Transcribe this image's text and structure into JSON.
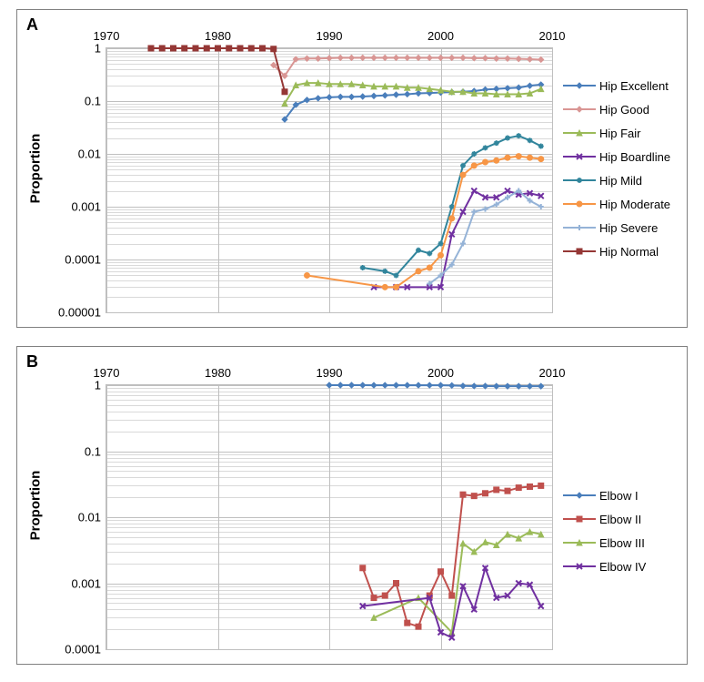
{
  "panelA": {
    "label": "A",
    "ylabel": "Proportion",
    "xlim": [
      1970,
      2010
    ],
    "xticks": [
      1970,
      1980,
      1990,
      2000,
      2010
    ],
    "ylim_log10": [
      -5,
      0
    ],
    "ytick_labels": [
      "1",
      "0.1",
      "0.01",
      "0.001",
      "0.0001",
      "0.00001"
    ],
    "axis_label_fontsize": 15,
    "tick_fontsize": 13,
    "grid_major_color": "#bfbfbf",
    "grid_minor_color": "#d9d9d9",
    "background_color": "#ffffff",
    "line_width": 2,
    "marker_size": 6,
    "series": [
      {
        "name": "Hip Excellent",
        "color": "#4a7ebb",
        "marker": "diamond",
        "data": [
          [
            1986,
            0.045
          ],
          [
            1987,
            0.085
          ],
          [
            1988,
            0.105
          ],
          [
            1989,
            0.113
          ],
          [
            1990,
            0.118
          ],
          [
            1991,
            0.12
          ],
          [
            1992,
            0.12
          ],
          [
            1993,
            0.122
          ],
          [
            1994,
            0.125
          ],
          [
            1995,
            0.128
          ],
          [
            1996,
            0.132
          ],
          [
            1997,
            0.135
          ],
          [
            1998,
            0.14
          ],
          [
            1999,
            0.142
          ],
          [
            2000,
            0.145
          ],
          [
            2001,
            0.148
          ],
          [
            2002,
            0.15
          ],
          [
            2003,
            0.155
          ],
          [
            2004,
            0.165
          ],
          [
            2005,
            0.17
          ],
          [
            2006,
            0.175
          ],
          [
            2007,
            0.18
          ],
          [
            2008,
            0.195
          ],
          [
            2009,
            0.205
          ]
        ]
      },
      {
        "name": "Hip Good",
        "color": "#d99694",
        "marker": "diamond",
        "data": [
          [
            1985,
            0.48
          ],
          [
            1986,
            0.3
          ],
          [
            1987,
            0.62
          ],
          [
            1988,
            0.64
          ],
          [
            1989,
            0.64
          ],
          [
            1990,
            0.65
          ],
          [
            1991,
            0.66
          ],
          [
            1992,
            0.66
          ],
          [
            1993,
            0.66
          ],
          [
            1994,
            0.66
          ],
          [
            1995,
            0.66
          ],
          [
            1996,
            0.66
          ],
          [
            1997,
            0.66
          ],
          [
            1998,
            0.66
          ],
          [
            1999,
            0.66
          ],
          [
            2000,
            0.66
          ],
          [
            2001,
            0.66
          ],
          [
            2002,
            0.66
          ],
          [
            2003,
            0.65
          ],
          [
            2004,
            0.65
          ],
          [
            2005,
            0.64
          ],
          [
            2006,
            0.64
          ],
          [
            2007,
            0.63
          ],
          [
            2008,
            0.62
          ],
          [
            2009,
            0.61
          ]
        ]
      },
      {
        "name": "Hip Fair",
        "color": "#9bbb59",
        "marker": "triangle",
        "data": [
          [
            1986,
            0.09
          ],
          [
            1987,
            0.2
          ],
          [
            1988,
            0.22
          ],
          [
            1989,
            0.22
          ],
          [
            1990,
            0.21
          ],
          [
            1991,
            0.21
          ],
          [
            1992,
            0.21
          ],
          [
            1993,
            0.2
          ],
          [
            1994,
            0.19
          ],
          [
            1995,
            0.19
          ],
          [
            1996,
            0.19
          ],
          [
            1997,
            0.18
          ],
          [
            1998,
            0.18
          ],
          [
            1999,
            0.17
          ],
          [
            2000,
            0.16
          ],
          [
            2001,
            0.15
          ],
          [
            2002,
            0.15
          ],
          [
            2003,
            0.14
          ],
          [
            2004,
            0.14
          ],
          [
            2005,
            0.135
          ],
          [
            2006,
            0.135
          ],
          [
            2007,
            0.135
          ],
          [
            2008,
            0.14
          ],
          [
            2009,
            0.17
          ]
        ]
      },
      {
        "name": "Hip Boardline",
        "color": "#7030a0",
        "marker": "x",
        "data": [
          [
            1994,
            3e-05
          ],
          [
            1996,
            3e-05
          ],
          [
            1997,
            3e-05
          ],
          [
            1999,
            3e-05
          ],
          [
            2000,
            3e-05
          ],
          [
            2001,
            0.0003
          ],
          [
            2002,
            0.0008
          ],
          [
            2003,
            0.002
          ],
          [
            2004,
            0.0015
          ],
          [
            2005,
            0.0015
          ],
          [
            2006,
            0.002
          ],
          [
            2007,
            0.0017
          ],
          [
            2008,
            0.0018
          ],
          [
            2009,
            0.0016
          ]
        ]
      },
      {
        "name": "Hip Mild",
        "color": "#31859c",
        "marker": "asterisk",
        "data": [
          [
            1993,
            7e-05
          ],
          [
            1995,
            6e-05
          ],
          [
            1996,
            5e-05
          ],
          [
            1998,
            0.00015
          ],
          [
            1999,
            0.00013
          ],
          [
            2000,
            0.0002
          ],
          [
            2001,
            0.001
          ],
          [
            2002,
            0.006
          ],
          [
            2003,
            0.01
          ],
          [
            2004,
            0.013
          ],
          [
            2005,
            0.016
          ],
          [
            2006,
            0.02
          ],
          [
            2007,
            0.022
          ],
          [
            2008,
            0.018
          ],
          [
            2009,
            0.014
          ]
        ]
      },
      {
        "name": "Hip Moderate",
        "color": "#f79646",
        "marker": "circle",
        "data": [
          [
            1988,
            5e-05
          ],
          [
            1995,
            3e-05
          ],
          [
            1996,
            3e-05
          ],
          [
            1998,
            6e-05
          ],
          [
            1999,
            7e-05
          ],
          [
            2000,
            0.00012
          ],
          [
            2001,
            0.0006
          ],
          [
            2002,
            0.004
          ],
          [
            2003,
            0.006
          ],
          [
            2004,
            0.007
          ],
          [
            2005,
            0.0075
          ],
          [
            2006,
            0.0085
          ],
          [
            2007,
            0.009
          ],
          [
            2008,
            0.0085
          ],
          [
            2009,
            0.008
          ]
        ]
      },
      {
        "name": "Hip Severe",
        "color": "#95b3d7",
        "marker": "plus",
        "data": [
          [
            1999,
            3.5e-05
          ],
          [
            2000,
            5e-05
          ],
          [
            2001,
            8e-05
          ],
          [
            2002,
            0.0002
          ],
          [
            2003,
            0.0008
          ],
          [
            2004,
            0.0009
          ],
          [
            2005,
            0.0011
          ],
          [
            2006,
            0.0015
          ],
          [
            2007,
            0.002
          ],
          [
            2008,
            0.0013
          ],
          [
            2009,
            0.001
          ]
        ]
      },
      {
        "name": "Hip Normal",
        "color": "#953735",
        "marker": "square",
        "data": [
          [
            1974,
            1.0
          ],
          [
            1975,
            1.0
          ],
          [
            1976,
            1.0
          ],
          [
            1977,
            1.0
          ],
          [
            1978,
            1.0
          ],
          [
            1979,
            1.0
          ],
          [
            1980,
            1.0
          ],
          [
            1981,
            1.0
          ],
          [
            1982,
            1.0
          ],
          [
            1983,
            1.0
          ],
          [
            1984,
            1.0
          ],
          [
            1985,
            0.97
          ],
          [
            1986,
            0.15
          ]
        ]
      }
    ]
  },
  "panelB": {
    "label": "B",
    "ylabel": "Proportion",
    "xlim": [
      1970,
      2010
    ],
    "xticks": [
      1970,
      1980,
      1990,
      2000,
      2010
    ],
    "ylim_log10": [
      -4,
      0
    ],
    "ytick_labels": [
      "1",
      "0.1",
      "0.01",
      "0.001",
      "0.0001"
    ],
    "axis_label_fontsize": 15,
    "tick_fontsize": 13,
    "grid_major_color": "#bfbfbf",
    "grid_minor_color": "#d9d9d9",
    "background_color": "#ffffff",
    "line_width": 2,
    "marker_size": 6,
    "series": [
      {
        "name": "Elbow I",
        "color": "#4a7ebb",
        "marker": "diamond",
        "data": [
          [
            1990,
            1.0
          ],
          [
            1991,
            1.0
          ],
          [
            1992,
            1.0
          ],
          [
            1993,
            0.999
          ],
          [
            1994,
            0.998
          ],
          [
            1995,
            0.998
          ],
          [
            1996,
            0.998
          ],
          [
            1997,
            0.998
          ],
          [
            1998,
            0.998
          ],
          [
            1999,
            0.998
          ],
          [
            2000,
            0.997
          ],
          [
            2001,
            0.99
          ],
          [
            2002,
            0.975
          ],
          [
            2003,
            0.97
          ],
          [
            2004,
            0.97
          ],
          [
            2005,
            0.965
          ],
          [
            2006,
            0.965
          ],
          [
            2007,
            0.965
          ],
          [
            2008,
            0.965
          ],
          [
            2009,
            0.965
          ]
        ]
      },
      {
        "name": "Elbow II",
        "color": "#c0504d",
        "marker": "square",
        "data": [
          [
            1993,
            0.0017
          ],
          [
            1994,
            0.0006
          ],
          [
            1995,
            0.00065
          ],
          [
            1996,
            0.001
          ],
          [
            1997,
            0.00025
          ],
          [
            1998,
            0.00022
          ],
          [
            1999,
            0.00065
          ],
          [
            2000,
            0.0015
          ],
          [
            2001,
            0.00065
          ],
          [
            2002,
            0.022
          ],
          [
            2003,
            0.021
          ],
          [
            2004,
            0.023
          ],
          [
            2005,
            0.026
          ],
          [
            2006,
            0.025
          ],
          [
            2007,
            0.028
          ],
          [
            2008,
            0.029
          ],
          [
            2009,
            0.03
          ]
        ]
      },
      {
        "name": "Elbow III",
        "color": "#9bbb59",
        "marker": "triangle",
        "data": [
          [
            1994,
            0.0003
          ],
          [
            1998,
            0.0006
          ],
          [
            2001,
            0.00018
          ],
          [
            2002,
            0.004
          ],
          [
            2003,
            0.003
          ],
          [
            2004,
            0.0042
          ],
          [
            2005,
            0.0038
          ],
          [
            2006,
            0.0055
          ],
          [
            2007,
            0.0048
          ],
          [
            2008,
            0.006
          ],
          [
            2009,
            0.0055
          ]
        ]
      },
      {
        "name": "Elbow IV",
        "color": "#7030a0",
        "marker": "x",
        "data": [
          [
            1993,
            0.00045
          ],
          [
            1999,
            0.0006
          ],
          [
            2000,
            0.00018
          ],
          [
            2001,
            0.00015
          ],
          [
            2002,
            0.0009
          ],
          [
            2003,
            0.0004
          ],
          [
            2004,
            0.0017
          ],
          [
            2005,
            0.0006
          ],
          [
            2006,
            0.00065
          ],
          [
            2007,
            0.001
          ],
          [
            2008,
            0.00095
          ],
          [
            2009,
            0.00045
          ]
        ]
      }
    ]
  }
}
